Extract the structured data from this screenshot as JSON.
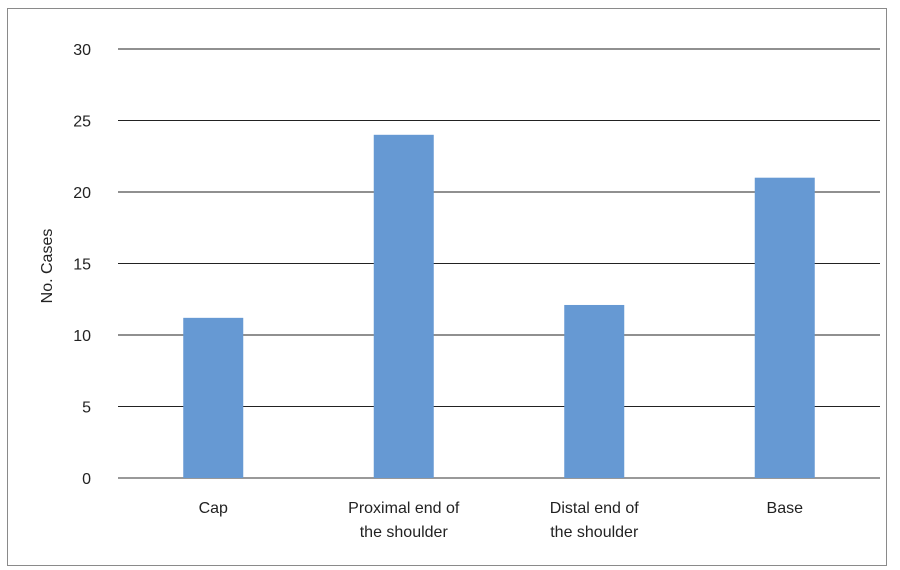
{
  "chart_data": {
    "type": "bar",
    "title": "",
    "ylabel": "No. Cases",
    "xlabel": "",
    "ylim": [
      0,
      30
    ],
    "yticks": [
      0,
      5,
      10,
      15,
      20,
      25,
      30
    ],
    "grid": true,
    "categories": [
      [
        "Cap"
      ],
      [
        "Proximal end of",
        "the shoulder"
      ],
      [
        "Distal end of",
        "the shoulder"
      ],
      [
        "Base"
      ]
    ],
    "values": [
      11.2,
      24,
      12.1,
      21
    ],
    "bar_color": "#6699d3"
  }
}
